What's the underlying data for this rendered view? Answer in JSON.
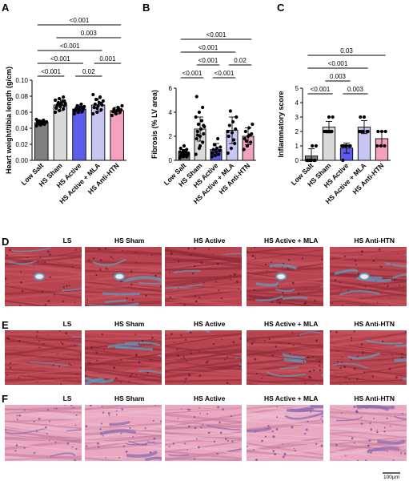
{
  "panels": {
    "A": "A",
    "B": "B",
    "C": "C",
    "D": "D",
    "E": "E",
    "F": "F"
  },
  "chart_data": [
    {
      "type": "bar",
      "panel": "A",
      "ylabel": "Heart weight/tibia length (g/cm)",
      "ylim": [
        0,
        0.1
      ],
      "yticks": [
        "0.00",
        "0.02",
        "0.04",
        "0.06",
        "0.08",
        "0.10"
      ],
      "categories": [
        "Low Salt",
        "HS Sham",
        "HS Active",
        "HS Active + MLA",
        "HS Anti-HTN"
      ],
      "values": [
        0.047,
        0.069,
        0.064,
        0.069,
        0.062
      ],
      "errors": [
        0.003,
        0.007,
        0.005,
        0.008,
        0.004
      ],
      "colors": [
        "#808080",
        "#d9d9d9",
        "#5a5ee8",
        "#c7c5f2",
        "#f4a0c0"
      ],
      "points": [
        [
          0.043,
          0.044,
          0.045,
          0.046,
          0.046,
          0.047,
          0.047,
          0.048,
          0.048,
          0.049,
          0.05,
          0.051,
          0.045,
          0.047,
          0.049
        ],
        [
          0.06,
          0.062,
          0.064,
          0.066,
          0.067,
          0.068,
          0.069,
          0.07,
          0.071,
          0.072,
          0.073,
          0.075,
          0.077,
          0.079,
          0.065,
          0.07,
          0.074
        ],
        [
          0.058,
          0.06,
          0.061,
          0.062,
          0.063,
          0.064,
          0.065,
          0.066,
          0.067,
          0.068,
          0.07,
          0.062,
          0.064,
          0.066
        ],
        [
          0.058,
          0.06,
          0.063,
          0.066,
          0.068,
          0.069,
          0.07,
          0.072,
          0.074,
          0.076,
          0.079,
          0.082,
          0.065,
          0.071
        ],
        [
          0.056,
          0.058,
          0.06,
          0.061,
          0.062,
          0.063,
          0.064,
          0.066,
          0.068,
          0.06,
          0.063
        ]
      ],
      "comparisons": [
        {
          "from": 0,
          "to": 1,
          "label": "<0.001"
        },
        {
          "from": 2,
          "to": 3,
          "label": "0.02"
        },
        {
          "from": 0,
          "to": 2,
          "label": "<0.001"
        },
        {
          "from": 3,
          "to": 4,
          "label": "0.001"
        },
        {
          "from": 0,
          "to": 3,
          "label": "<0.001"
        },
        {
          "from": 1,
          "to": 4,
          "label": "0.003"
        },
        {
          "from": 0,
          "to": 4,
          "label": "<0.001"
        }
      ]
    },
    {
      "type": "bar",
      "panel": "B",
      "ylabel": "Fibrosis (% LV area)",
      "ylim": [
        0,
        6
      ],
      "yticks": [
        "0",
        "2",
        "4",
        "6"
      ],
      "categories": [
        "Low Salt",
        "HS Sham",
        "HS Active",
        "HS Active + MLA",
        "HS Anti-HTN"
      ],
      "values": [
        0.6,
        2.6,
        0.9,
        2.5,
        2.0
      ],
      "errors": [
        0.3,
        1.0,
        0.5,
        1.1,
        0.7
      ],
      "colors": [
        "#808080",
        "#d9d9d9",
        "#5a5ee8",
        "#c7c5f2",
        "#f4a0c0"
      ],
      "points": [
        [
          0.2,
          0.3,
          0.3,
          0.4,
          0.4,
          0.5,
          0.5,
          0.5,
          0.6,
          0.6,
          0.7,
          0.7,
          0.8,
          0.9,
          1.0,
          1.2,
          0.4,
          0.6
        ],
        [
          0.5,
          1.0,
          1.5,
          1.8,
          2.0,
          2.2,
          2.4,
          2.6,
          2.8,
          3.0,
          3.3,
          3.6,
          4.0,
          4.4,
          5.3,
          1.2,
          2.9,
          2.1
        ],
        [
          0.3,
          0.4,
          0.5,
          0.6,
          0.7,
          0.8,
          0.9,
          1.0,
          1.1,
          1.3,
          1.8,
          0.6
        ],
        [
          0.6,
          1.0,
          1.4,
          2.0,
          2.3,
          2.6,
          2.9,
          3.2,
          3.6,
          4.1,
          1.7,
          2.4
        ],
        [
          0.9,
          1.2,
          1.5,
          1.8,
          2.0,
          2.2,
          2.4,
          2.7,
          3.0,
          1.6,
          2.1
        ]
      ],
      "comparisons": [
        {
          "from": 0,
          "to": 1,
          "label": "<0.001"
        },
        {
          "from": 2,
          "to": 3,
          "label": "<0.001"
        },
        {
          "from": 1,
          "to": 2,
          "label": "<0.001"
        },
        {
          "from": 3,
          "to": 4,
          "label": "0.02"
        },
        {
          "from": 0,
          "to": 3,
          "label": "<0.001"
        },
        {
          "from": 0,
          "to": 4,
          "label": "<0.001"
        }
      ]
    },
    {
      "type": "bar",
      "panel": "C",
      "ylabel": "Inflammatory score",
      "ylim": [
        0,
        5
      ],
      "yticks": [
        "0",
        "1",
        "2",
        "3",
        "4",
        "5"
      ],
      "categories": [
        "Low Salt",
        "HS Sham",
        "HS Active",
        "HS Active + MLA",
        "HS Anti-HTN"
      ],
      "values": [
        0.3,
        2.3,
        0.85,
        2.3,
        1.5
      ],
      "errors": [
        0.5,
        0.4,
        0.35,
        0.45,
        0.5
      ],
      "colors": [
        "#808080",
        "#d9d9d9",
        "#5a5ee8",
        "#c7c5f2",
        "#f4a0c0"
      ],
      "points": [
        [
          0,
          0,
          0,
          0,
          0,
          0,
          0,
          1,
          1,
          0
        ],
        [
          2,
          2,
          2,
          2,
          3,
          3,
          2,
          2
        ],
        [
          1,
          1,
          1,
          0,
          1,
          1,
          1
        ],
        [
          2,
          2,
          2,
          3,
          3,
          2,
          2
        ],
        [
          1,
          1,
          1,
          2,
          2,
          2
        ]
      ],
      "comparisons": [
        {
          "from": 0,
          "to": 1,
          "label": "<0.001"
        },
        {
          "from": 2,
          "to": 3,
          "label": "0.003"
        },
        {
          "from": 1,
          "to": 2,
          "label": "0.003"
        },
        {
          "from": 0,
          "to": 3,
          "label": "<0.001"
        },
        {
          "from": 0,
          "to": 4,
          "label": "0.03"
        }
      ]
    }
  ],
  "histology": {
    "rows": [
      {
        "panel": "D",
        "stain": "trichrome",
        "labels": [
          "LS",
          "HS Sham",
          "HS Active",
          "HS Active + MLA",
          "HS Anti-HTN"
        ]
      },
      {
        "panel": "E",
        "stain": "trichrome",
        "labels": [
          "LS",
          "HS Sham",
          "HS Active",
          "HS Active + MLA",
          "HS Anti-HTN"
        ]
      },
      {
        "panel": "F",
        "stain": "he",
        "labels": [
          "LS",
          "HS Sham",
          "HS Active",
          "HS Active + MLA",
          "HS Anti-HTN"
        ]
      }
    ],
    "stain_colors": {
      "trichrome": {
        "base": "#b8444f",
        "mid": "#c95862",
        "dark": "#8e2b38",
        "fiber": "#5f9bc0"
      },
      "he": {
        "base": "#e9a8c0",
        "mid": "#efbccf",
        "dark": "#c67c9c",
        "fiber": "#8a6bb3"
      }
    },
    "scale_bar": "100µm"
  }
}
